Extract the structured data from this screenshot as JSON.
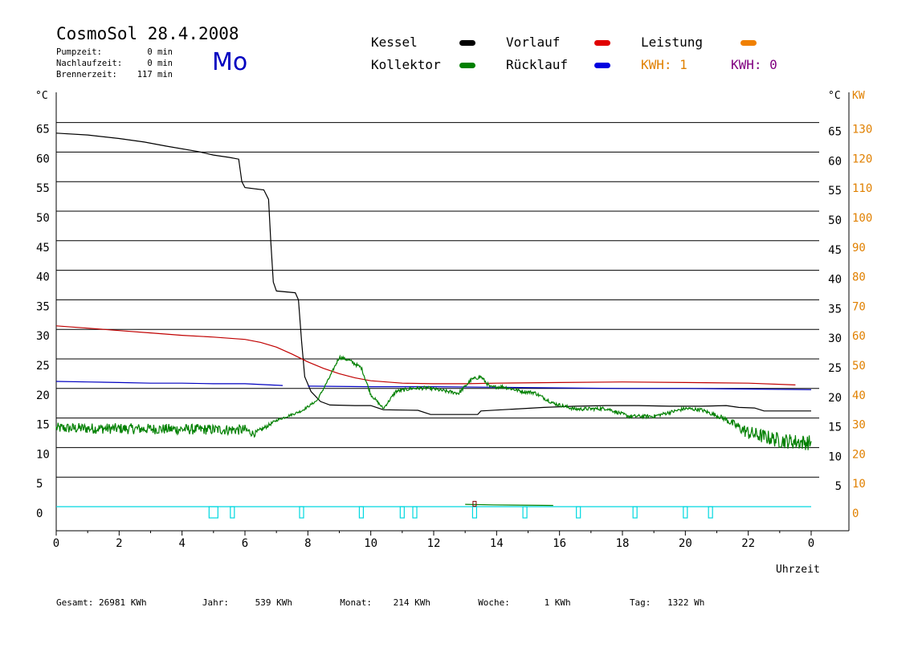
{
  "header": {
    "title": "CosmoSol 28.4.2008",
    "day": "Mo",
    "stats": [
      {
        "label": "Pumpzeit:",
        "value": "0 min"
      },
      {
        "label": "Nachlaufzeit:",
        "value": "0 min"
      },
      {
        "label": "Brennerzeit:",
        "value": "117 min"
      }
    ]
  },
  "legend": {
    "kessel": {
      "label": "Kessel",
      "color": "#000000"
    },
    "vorlauf": {
      "label": "Vorlauf",
      "color": "#e00000"
    },
    "leistung": {
      "label": "Leistung",
      "color": "#f08000"
    },
    "kollektor": {
      "label": "Kollektor",
      "color": "#008000"
    },
    "ruecklauf": {
      "label": "Rücklauf",
      "color": "#0000e0"
    },
    "kwh1": {
      "label": "KWH: 1",
      "color": "#e08000"
    },
    "kwh0": {
      "label": "KWH: 0",
      "color": "#800080"
    }
  },
  "footer": [
    {
      "label": "Gesamt:",
      "value": "26981 KWh"
    },
    {
      "label": "Jahr:",
      "value": "539 KWh"
    },
    {
      "label": "Monat:",
      "value": "214 KWh"
    },
    {
      "label": "Woche:",
      "value": "1 KWh"
    },
    {
      "label": "Tag:",
      "value": "1322 Wh"
    }
  ],
  "chart_data": {
    "type": "line",
    "xlabel": "Uhrzeit",
    "ylabel_left": "°C",
    "ylabel_right_1": "°C",
    "ylabel_right_2": "KW",
    "x_ticks": [
      "0",
      "2",
      "4",
      "6",
      "8",
      "10",
      "12",
      "14",
      "16",
      "18",
      "20",
      "22",
      "0"
    ],
    "xlim": [
      0,
      24
    ],
    "ylim": [
      -3,
      65
    ],
    "y_ticks": [
      0,
      5,
      10,
      15,
      20,
      25,
      30,
      35,
      40,
      45,
      50,
      55,
      60,
      65
    ],
    "y_ticks_kw": [
      0,
      10,
      20,
      30,
      40,
      50,
      60,
      70,
      80,
      90,
      100,
      110,
      120,
      130
    ],
    "grid": true,
    "series": [
      {
        "name": "Kessel",
        "color": "#000000",
        "points": [
          [
            0,
            63.2
          ],
          [
            1,
            62.9
          ],
          [
            2,
            62.3
          ],
          [
            2.8,
            61.7
          ],
          [
            3.5,
            61.0
          ],
          [
            4.5,
            60.1
          ],
          [
            5,
            59.5
          ],
          [
            5.5,
            59.1
          ],
          [
            5.8,
            58.8
          ],
          [
            5.9,
            55
          ],
          [
            6.0,
            54
          ],
          [
            6.6,
            53.6
          ],
          [
            6.75,
            52
          ],
          [
            6.82,
            45
          ],
          [
            6.9,
            38
          ],
          [
            7.0,
            36.5
          ],
          [
            7.6,
            36.2
          ],
          [
            7.7,
            35
          ],
          [
            7.8,
            28
          ],
          [
            7.9,
            22
          ],
          [
            8.1,
            19.5
          ],
          [
            8.4,
            17.8
          ],
          [
            8.7,
            17.2
          ],
          [
            9.5,
            17.1
          ],
          [
            10.0,
            17.1
          ],
          [
            10.4,
            16.4
          ],
          [
            11.5,
            16.3
          ],
          [
            11.9,
            15.6
          ],
          [
            13.4,
            15.6
          ],
          [
            13.5,
            16.2
          ],
          [
            14.5,
            16.5
          ],
          [
            15.5,
            16.8
          ],
          [
            16.5,
            17.0
          ],
          [
            17.5,
            17.1
          ],
          [
            18.5,
            17.1
          ],
          [
            19.5,
            17.0
          ],
          [
            20.5,
            17.0
          ],
          [
            21.3,
            17.1
          ],
          [
            21.7,
            16.8
          ],
          [
            22.2,
            16.7
          ],
          [
            22.5,
            16.2
          ],
          [
            24,
            16.2
          ]
        ]
      },
      {
        "name": "Vorlauf",
        "color": "#c00000",
        "points": [
          [
            0,
            30.6
          ],
          [
            1,
            30.2
          ],
          [
            2,
            29.8
          ],
          [
            3,
            29.4
          ],
          [
            4,
            29.0
          ],
          [
            5,
            28.7
          ],
          [
            6,
            28.3
          ],
          [
            6.5,
            27.8
          ],
          [
            7,
            27.0
          ],
          [
            7.5,
            25.8
          ],
          [
            8,
            24.5
          ],
          [
            8.5,
            23.4
          ],
          [
            9,
            22.5
          ],
          [
            9.5,
            21.8
          ],
          [
            10,
            21.3
          ],
          [
            11,
            20.9
          ],
          [
            12,
            20.8
          ],
          [
            13,
            20.8
          ],
          [
            14,
            20.9
          ],
          [
            16,
            21.0
          ],
          [
            18,
            21.1
          ],
          [
            20,
            21.0
          ],
          [
            22,
            20.9
          ],
          [
            23.5,
            20.6
          ]
        ]
      },
      {
        "name": "Rücklauf",
        "color": "#0000c0",
        "points": [
          [
            0,
            21.2
          ],
          [
            1,
            21.1
          ],
          [
            2,
            21.0
          ],
          [
            3,
            20.9
          ],
          [
            4,
            20.9
          ],
          [
            5,
            20.8
          ],
          [
            6,
            20.8
          ],
          [
            7.2,
            20.5
          ]
        ]
      },
      {
        "name": "Rücklauf",
        "color": "#0000c0",
        "points": [
          [
            8,
            20.4
          ],
          [
            10,
            20.3
          ],
          [
            12,
            20.3
          ],
          [
            14,
            20.2
          ],
          [
            16,
            20.1
          ],
          [
            18,
            20.0
          ],
          [
            20,
            20.0
          ],
          [
            22,
            19.9
          ],
          [
            24,
            19.8
          ]
        ]
      },
      {
        "name": "Kollektor",
        "color": "#008000",
        "noise": [
          [
            0,
            13.3,
            0.9
          ],
          [
            6,
            13.0,
            0.9
          ],
          [
            6.3,
            12.3,
            0.5
          ],
          [
            7,
            14.6,
            0.2
          ],
          [
            7.8,
            16.2,
            0.2
          ],
          [
            8.3,
            18.0,
            0.2
          ],
          [
            8.7,
            22.0,
            0.2
          ],
          [
            9.0,
            25.3,
            0.3
          ],
          [
            9.3,
            24.8,
            0.3
          ],
          [
            9.7,
            23.5,
            0.3
          ],
          [
            10.0,
            19.0,
            0.3
          ],
          [
            10.4,
            16.6,
            0.2
          ],
          [
            10.8,
            19.5,
            0.3
          ],
          [
            11.3,
            20.0,
            0.3
          ],
          [
            11.8,
            20.1,
            0.3
          ],
          [
            12.3,
            19.6,
            0.3
          ],
          [
            12.8,
            19.2,
            0.3
          ],
          [
            13.2,
            21.5,
            0.3
          ],
          [
            13.5,
            22.0,
            0.3
          ],
          [
            13.8,
            20.2,
            0.3
          ],
          [
            14.2,
            20.3,
            0.3
          ],
          [
            14.8,
            19.5,
            0.3
          ],
          [
            15.2,
            19.3,
            0.3
          ],
          [
            15.8,
            17.5,
            0.3
          ],
          [
            16.5,
            16.5,
            0.3
          ],
          [
            17.5,
            16.6,
            0.3
          ],
          [
            18.2,
            15.3,
            0.3
          ],
          [
            19,
            15.3,
            0.3
          ],
          [
            20,
            16.6,
            0.3
          ],
          [
            20.5,
            16.4,
            0.3
          ],
          [
            21.2,
            15.0,
            0.4
          ],
          [
            22,
            12.5,
            1.2
          ],
          [
            23,
            11.2,
            1.3
          ],
          [
            24,
            10.8,
            1.3
          ]
        ]
      },
      {
        "name": "Leistung",
        "color": "#008000",
        "points": [
          [
            13.0,
            0.4
          ],
          [
            13.9,
            0.3
          ],
          [
            15.8,
            0.2
          ]
        ]
      }
    ],
    "markers_cyan_x": [
      5.0,
      5.6,
      7.8,
      9.7,
      11.0,
      11.4,
      13.3,
      14.9,
      16.6,
      18.4,
      20.0,
      20.8
    ],
    "baseline_cyan": 0
  }
}
